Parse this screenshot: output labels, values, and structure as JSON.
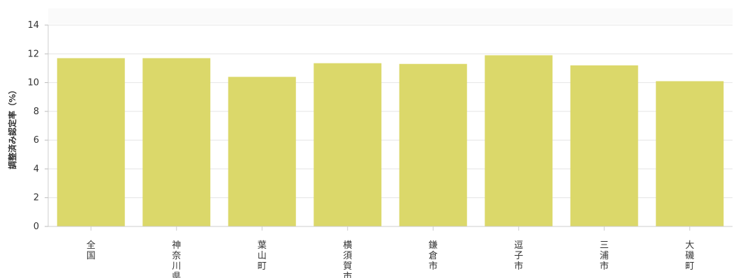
{
  "chart_data": {
    "type": "bar",
    "title": "",
    "xlabel": "",
    "ylabel": "調整済み認定率（%）",
    "categories": [
      "全国",
      "神奈川県",
      "葉山町",
      "横須賀市",
      "鎌倉市",
      "逗子市",
      "三浦市",
      "大磯町"
    ],
    "values": [
      11.7,
      11.7,
      10.4,
      11.35,
      11.3,
      11.9,
      11.2,
      10.1
    ],
    "ylim": [
      0,
      14
    ],
    "yticks": [
      0,
      2,
      4,
      6,
      8,
      10,
      12,
      14
    ],
    "grid": true,
    "legend": "none",
    "bar_color": "#dbd86a"
  }
}
